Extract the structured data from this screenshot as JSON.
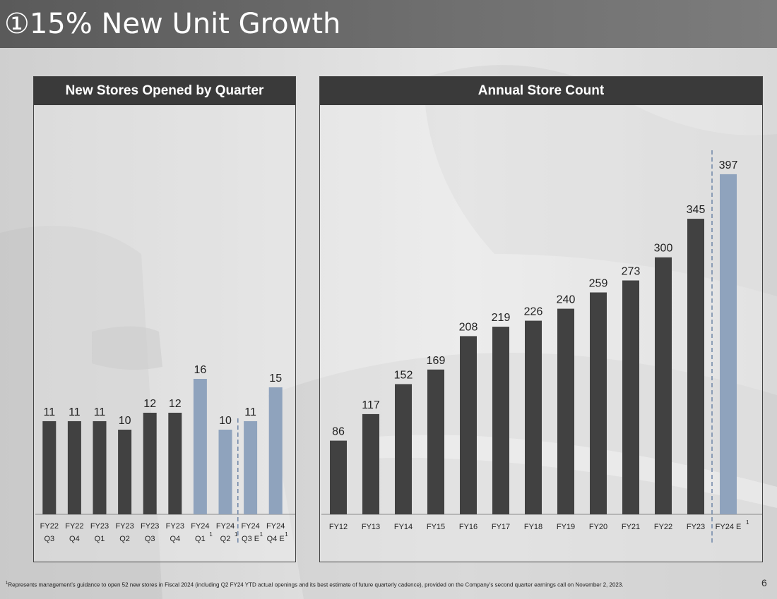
{
  "header": {
    "title": "①15% New Unit Growth"
  },
  "left_panel": {
    "title": "New Stores Opened by Quarter"
  },
  "right_panel": {
    "title": "Annual Store Count"
  },
  "footnote": {
    "marker": "1",
    "text": "Represents management’s guidance to open 52 new stores in Fiscal 2024 (including Q2 FY24 YTD actual openings and its best estimate of future quarterly cadence), provided on the Company’s second quarter earnings call on November 2, 2023."
  },
  "page_number": "6",
  "colors": {
    "actual": "#414141",
    "estimate": "#8fa3bd",
    "divider": "#6f86a7"
  },
  "chart_data": [
    {
      "type": "bar",
      "title": "New Stores Opened by Quarter",
      "categories": [
        {
          "line1": "FY22",
          "line2": "Q3",
          "sup": ""
        },
        {
          "line1": "FY22",
          "line2": "Q4",
          "sup": ""
        },
        {
          "line1": "FY23",
          "line2": "Q1",
          "sup": ""
        },
        {
          "line1": "FY23",
          "line2": "Q2",
          "sup": ""
        },
        {
          "line1": "FY23",
          "line2": "Q3",
          "sup": ""
        },
        {
          "line1": "FY23",
          "line2": "Q4",
          "sup": ""
        },
        {
          "line1": "FY24",
          "line2": "Q1",
          "sup": "1"
        },
        {
          "line1": "FY24",
          "line2": "Q2",
          "sup": "1"
        },
        {
          "line1": "FY24",
          "line2": "Q3 E",
          "sup": "1"
        },
        {
          "line1": "FY24",
          "line2": "Q4 E",
          "sup": "1"
        }
      ],
      "values": [
        11,
        11,
        11,
        10,
        12,
        12,
        16,
        10,
        11,
        15
      ],
      "highlight": [
        false,
        false,
        false,
        false,
        false,
        false,
        true,
        true,
        true,
        true
      ],
      "divider_after_index": 7,
      "ylim": [
        0,
        20
      ]
    },
    {
      "type": "bar",
      "title": "Annual Store Count",
      "categories": [
        {
          "label": "FY12",
          "sup": ""
        },
        {
          "label": "FY13",
          "sup": ""
        },
        {
          "label": "FY14",
          "sup": ""
        },
        {
          "label": "FY15",
          "sup": ""
        },
        {
          "label": "FY16",
          "sup": ""
        },
        {
          "label": "FY17",
          "sup": ""
        },
        {
          "label": "FY18",
          "sup": ""
        },
        {
          "label": "FY19",
          "sup": ""
        },
        {
          "label": "FY20",
          "sup": ""
        },
        {
          "label": "FY21",
          "sup": ""
        },
        {
          "label": "FY22",
          "sup": ""
        },
        {
          "label": "FY23",
          "sup": ""
        },
        {
          "label": "FY24 E",
          "sup": "1"
        }
      ],
      "values": [
        86,
        117,
        152,
        169,
        208,
        219,
        226,
        240,
        259,
        273,
        300,
        345,
        397
      ],
      "highlight": [
        false,
        false,
        false,
        false,
        false,
        false,
        false,
        false,
        false,
        false,
        false,
        false,
        true
      ],
      "divider_after_index": 11,
      "ylim": [
        0,
        420
      ]
    }
  ]
}
